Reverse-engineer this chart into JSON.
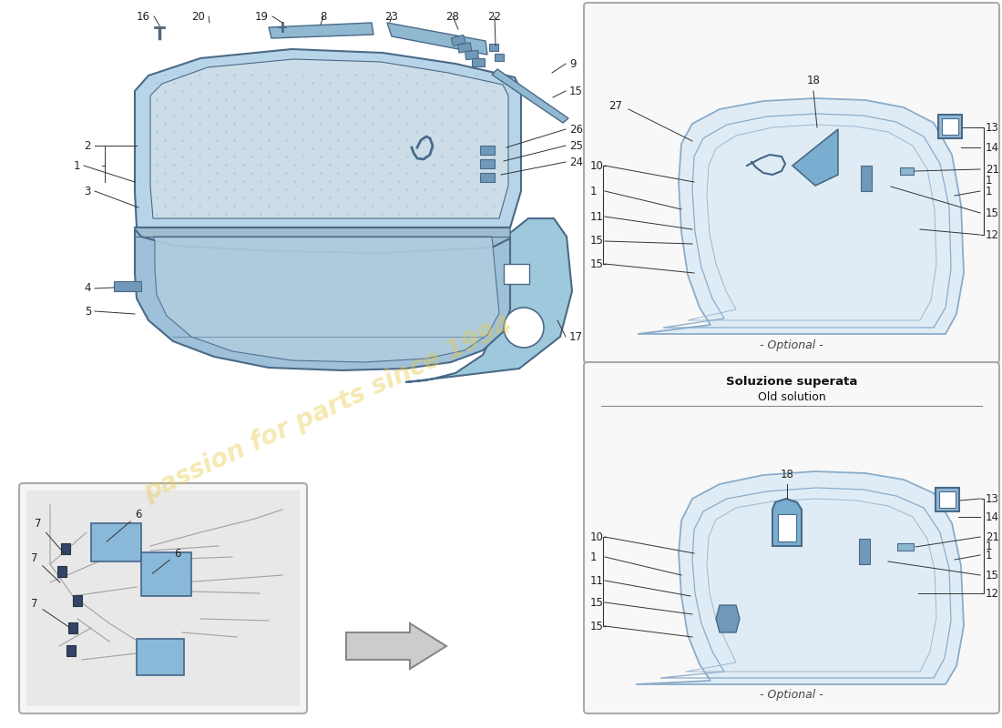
{
  "bg_color": "#ffffff",
  "light_blue_fill": "#b8d4e8",
  "medium_blue_fill": "#9ec0d8",
  "pale_blue_fill": "#ddeaf5",
  "dark_blue_edge": "#4a6a88",
  "box_edge": "#999999",
  "line_color": "#333333",
  "text_color": "#222222",
  "optional_text": "- Optional -",
  "old_solution_title": "Soluzione superata",
  "old_solution_subtitle": "Old solution",
  "watermark_text": "passion for parts since 1994",
  "watermark_color": "#e8c840",
  "watermark_alpha": 0.4,
  "watermark_rotation": 25,
  "watermark_fontsize": 20
}
